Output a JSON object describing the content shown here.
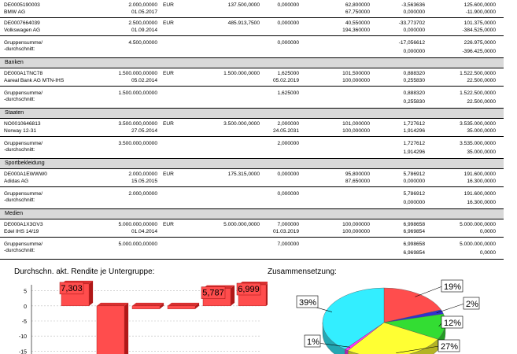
{
  "groups": [
    {
      "name": "",
      "rows": [
        {
          "isin": "DE0005190003",
          "date1": "01.05.2017",
          "qty": "2.000,00000",
          "cur": "EUR",
          "value": "137.500,0000",
          "rate": "0,000000",
          "date2": "",
          "price1": "62,800000",
          "price2": "67,750000",
          "yield1": "-3,563636",
          "yield2": "0,000000",
          "amt1": "125.600,0000",
          "amt2": "-11.900,0000",
          "name": "BMW AG"
        },
        {
          "isin": "DE0007664039",
          "date1": "01.09.2014",
          "qty": "2.500,00000",
          "cur": "EUR",
          "value": "485.913,7500",
          "rate": "0,000000",
          "date2": "",
          "price1": "40,550000",
          "price2": "194,360000",
          "yield1": "-33,773702",
          "yield2": "0,000000",
          "amt1": "101.375,0000",
          "amt2": "-384.525,0000",
          "name": "Volkswagen AG"
        }
      ],
      "sum": {
        "label1": "Gruppensumme/",
        "label2": "-durchschnitt:",
        "qty": "4.500,00000",
        "rate": "0,000000",
        "yield1": "-17,056612",
        "yield2": "0,000000",
        "amt1": "226.975,0000",
        "amt2": "-396.425,0000"
      }
    },
    {
      "name": "Banken",
      "rows": [
        {
          "isin": "DE000A1TNC78",
          "date1": "05.02.2014",
          "qty": "1.500.000,00000",
          "cur": "EUR",
          "value": "1.500.000,0000",
          "rate": "1,625000",
          "date2": "05.02.2019",
          "price1": "101,500000",
          "price2": "100,000000",
          "yield1": "0,888320",
          "yield2": "0,255830",
          "amt1": "1.522.500,0000",
          "amt2": "22.500,0000",
          "name": "Aareal Bank AG MTN-IHS"
        }
      ],
      "sum": {
        "label1": "Gruppensumme/",
        "label2": "-durchschnitt:",
        "qty": "1.500.000,00000",
        "rate": "1,625000",
        "yield1": "0,888320",
        "yield2": "0,255830",
        "amt1": "1.522.500,0000",
        "amt2": "22.500,0000"
      }
    },
    {
      "name": "Staaten",
      "rows": [
        {
          "isin": "NO0010646813",
          "date1": "27.05.2014",
          "qty": "3.500.000,00000",
          "cur": "EUR",
          "value": "3.500.000,0000",
          "rate": "2,000000",
          "date2": "24.05.2031",
          "price1": "101,000000",
          "price2": "100,000000",
          "yield1": "1,727612",
          "yield2": "1,914296",
          "amt1": "3.535.000,0000",
          "amt2": "35.000,0000",
          "name": "Norway 12-31"
        }
      ],
      "sum": {
        "label1": "Gruppensumme/",
        "label2": "-durchschnitt:",
        "qty": "3.500.000,00000",
        "rate": "2,000000",
        "yield1": "1,727612",
        "yield2": "1,914296",
        "amt1": "3.535.000,0000",
        "amt2": "35.000,0000"
      }
    },
    {
      "name": "Sportbekleidung",
      "rows": [
        {
          "isin": "DE000A1EWWW0",
          "date1": "15.05.2015",
          "qty": "2.000,00000",
          "cur": "EUR",
          "value": "175.315,0000",
          "rate": "0,000000",
          "date2": "",
          "price1": "95,800000",
          "price2": "87,650000",
          "yield1": "5,786912",
          "yield2": "0,000000",
          "amt1": "191.600,0000",
          "amt2": "16.300,0000",
          "name": "Adidas AG"
        }
      ],
      "sum": {
        "label1": "Gruppensumme/",
        "label2": "-durchschnitt:",
        "qty": "2.000,00000",
        "rate": "0,000000",
        "yield1": "5,786912",
        "yield2": "0,000000",
        "amt1": "191.600,0000",
        "amt2": "16.300,0000"
      }
    },
    {
      "name": "Medien",
      "rows": [
        {
          "isin": "DE000A1X3GV3",
          "date1": "01.04.2014",
          "qty": "5.000.000,00000",
          "cur": "EUR",
          "value": "5.000.000,0000",
          "rate": "7,000000",
          "date2": "01.03.2019",
          "price1": "100,000000",
          "price2": "100,000000",
          "yield1": "6,998658",
          "yield2": "6,969854",
          "amt1": "5.000.000,0000",
          "amt2": "0,0000",
          "name": "Edel IHS 14/19"
        }
      ],
      "sum": {
        "label1": "Gruppensumme/",
        "label2": "-durchschnitt:",
        "qty": "5.000.000,00000",
        "rate": "7,000000",
        "yield1": "6,998658",
        "yield2": "6,969854",
        "amt1": "5.000.000,0000",
        "amt2": "0,0000"
      }
    }
  ],
  "chart_data": [
    {
      "type": "bar",
      "title": "Durchschn. akt. Rendite je Untergruppe:",
      "yticks": [
        "5",
        "0",
        "-5",
        "-10",
        "-15"
      ],
      "ylim": [
        -17,
        7
      ],
      "values": [
        7.303,
        -17.057,
        -1.0,
        -1.0,
        5.787,
        6.999
      ],
      "data_labels": [
        "7,303",
        "",
        "",
        "",
        "5,787",
        "6,999"
      ],
      "colors": {
        "bar": "#ff4d4d",
        "bar_side": "#b01818",
        "bar_top": "#d83030"
      }
    },
    {
      "type": "pie",
      "title": "Zusammensetzung:",
      "slices": [
        {
          "label": "19%",
          "value": 19,
          "color": "#ff4d4d"
        },
        {
          "label": "2%",
          "value": 2,
          "color": "#3030d0"
        },
        {
          "label": "12%",
          "value": 12,
          "color": "#33dd33"
        },
        {
          "label": "27%",
          "value": 27,
          "color": "#ffff33"
        },
        {
          "label": "1%",
          "value": 1,
          "color": "#ff33ff"
        },
        {
          "label": "39%",
          "value": 39,
          "color": "#33eeff"
        }
      ]
    }
  ]
}
